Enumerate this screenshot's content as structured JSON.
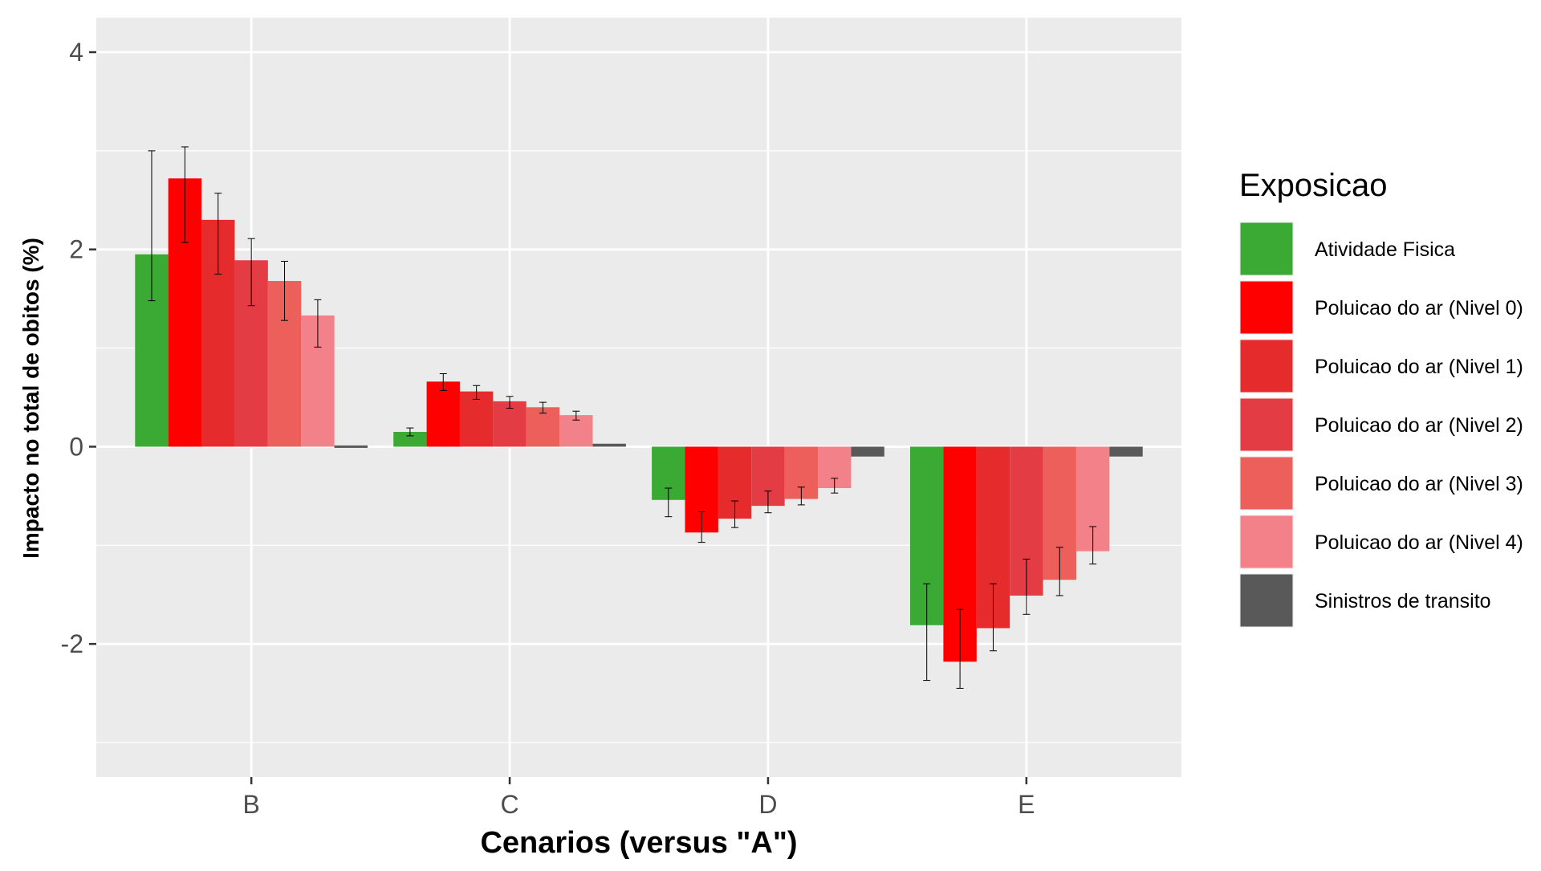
{
  "chart_data": {
    "type": "bar",
    "title": "",
    "xlabel": "Cenarios (versus \"A\")",
    "ylabel": "Impacto no total de obitos (%)",
    "categories": [
      "B",
      "C",
      "D",
      "E"
    ],
    "ylim": [
      -3.35,
      4.35
    ],
    "yticks": [
      -2,
      0,
      2,
      4
    ],
    "grid": true,
    "legend": {
      "title": "Exposicao",
      "position": "right"
    },
    "series": [
      {
        "name": "Atividade Fisica",
        "color": "#3aaa35",
        "values": [
          1.95,
          0.15,
          -0.54,
          -1.81
        ],
        "error_low": [
          1.48,
          0.11,
          -0.71,
          -2.37
        ],
        "error_high": [
          3.0,
          0.19,
          -0.42,
          -1.39
        ]
      },
      {
        "name": "Poluicao do ar (Nivel 0)",
        "color": "#ff0000",
        "values": [
          2.72,
          0.66,
          -0.87,
          -2.18
        ],
        "error_low": [
          2.07,
          0.57,
          -0.97,
          -2.45
        ],
        "error_high": [
          3.04,
          0.74,
          -0.66,
          -1.65
        ]
      },
      {
        "name": "Poluicao do ar (Nivel 1)",
        "color": "#e52b2b",
        "values": [
          2.3,
          0.56,
          -0.73,
          -1.84
        ],
        "error_low": [
          1.75,
          0.48,
          -0.82,
          -2.07
        ],
        "error_high": [
          2.57,
          0.62,
          -0.55,
          -1.39
        ]
      },
      {
        "name": "Poluicao do ar (Nivel 2)",
        "color": "#e43c44",
        "values": [
          1.89,
          0.46,
          -0.6,
          -1.51
        ],
        "error_low": [
          1.43,
          0.39,
          -0.67,
          -1.7
        ],
        "error_high": [
          2.11,
          0.51,
          -0.45,
          -1.14
        ]
      },
      {
        "name": "Poluicao do ar (Nivel 3)",
        "color": "#ec5f5a",
        "values": [
          1.68,
          0.4,
          -0.53,
          -1.35
        ],
        "error_low": [
          1.28,
          0.34,
          -0.59,
          -1.51
        ],
        "error_high": [
          1.88,
          0.45,
          -0.41,
          -1.02
        ]
      },
      {
        "name": "Poluicao do ar (Nivel 4)",
        "color": "#f28189",
        "values": [
          1.33,
          0.32,
          -0.42,
          -1.06
        ],
        "error_low": [
          1.01,
          0.27,
          -0.47,
          -1.19
        ],
        "error_high": [
          1.49,
          0.36,
          -0.32,
          -0.81
        ]
      },
      {
        "name": "Sinistros de transito",
        "color": "#595959",
        "values": [
          -0.01,
          0.03,
          -0.1,
          -0.1
        ]
      }
    ]
  }
}
